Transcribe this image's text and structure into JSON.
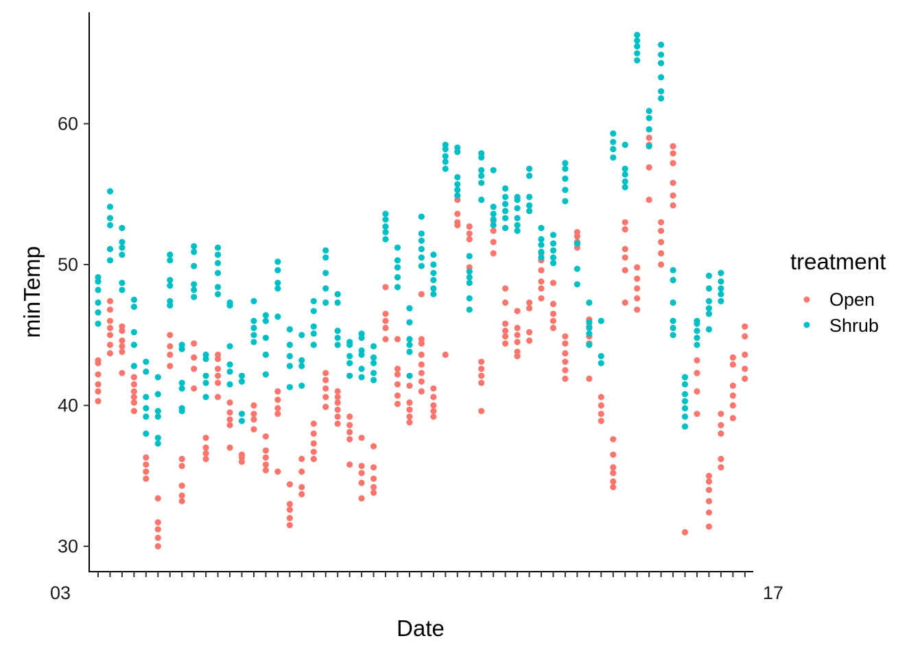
{
  "chart_data": {
    "type": "scatter",
    "title": "",
    "xlabel": "Date",
    "ylabel": "minTemp",
    "ylim": [
      29,
      67
    ],
    "yticks": [
      30,
      40,
      50,
      60
    ],
    "grid": false,
    "legend_position": "right",
    "legend_title": "treatment",
    "x_tick_note": "55 date categories; tick labels overlap and are illegible",
    "x_tick_labels_visible": [
      "03",
      "17"
    ],
    "series": [
      {
        "name": "Open",
        "color": "#F8766D",
        "columns": [
          [
            40.3,
            41.0,
            41.5,
            42.2,
            43.0,
            43.2
          ],
          [
            43.7,
            44.3,
            45.0,
            45.5,
            46.0,
            46.8,
            47.4
          ],
          [
            42.3,
            43.8,
            44.2,
            44.6,
            45.3,
            45.6
          ],
          [
            39.6,
            40.2,
            40.6,
            41.0,
            41.5,
            42.0
          ],
          [
            34.8,
            35.3,
            35.8,
            36.3
          ],
          [
            30.0,
            30.6,
            31.2,
            31.7,
            33.4
          ],
          [
            42.8,
            43.6,
            44.2,
            45.0
          ],
          [
            33.2,
            33.6,
            34.3,
            35.7,
            36.2
          ],
          [
            41.2,
            42.6,
            43.4,
            44.4
          ],
          [
            36.2,
            36.6,
            37.0,
            37.7
          ],
          [
            40.6,
            41.6,
            42.1,
            42.6,
            43.3,
            43.6
          ],
          [
            37.0,
            38.6,
            39.0,
            39.5,
            40.2
          ],
          [
            36.0,
            36.3,
            36.5
          ],
          [
            38.3,
            39.0,
            39.4,
            40.0
          ],
          [
            35.4,
            35.8,
            36.3,
            36.8,
            37.8
          ],
          [
            35.3,
            39.4,
            39.8,
            40.4,
            41.0
          ],
          [
            31.5,
            32.0,
            32.6,
            33.0,
            34.4
          ],
          [
            33.7,
            34.2,
            35.3,
            36.2
          ],
          [
            36.2,
            36.7,
            37.3,
            38.0,
            38.7
          ],
          [
            39.9,
            40.6,
            41.2,
            41.8,
            42.3
          ],
          [
            38.7,
            39.2,
            39.7,
            40.2,
            40.6,
            41.0
          ],
          [
            35.8,
            37.6,
            38.1,
            38.6,
            39.2
          ],
          [
            33.4,
            34.5,
            35.2,
            35.7,
            37.7
          ],
          [
            33.8,
            34.2,
            34.8,
            35.6,
            37.1
          ],
          [
            44.7,
            45.5,
            46.0,
            46.5,
            48.4
          ],
          [
            40.1,
            40.7,
            41.5,
            42.2,
            42.6,
            44.7
          ],
          [
            38.8,
            39.2,
            39.7,
            40.2,
            41.4
          ],
          [
            41.0,
            41.7,
            42.3,
            42.9,
            43.6,
            44.4,
            44.7,
            47.9
          ],
          [
            39.2,
            39.6,
            40.0,
            40.6,
            41.2
          ],
          [
            43.6
          ],
          [
            52.8,
            53.0,
            53.6,
            54.6
          ],
          [
            49.8,
            51.8,
            52.2,
            52.7
          ],
          [
            39.6,
            41.6,
            42.1,
            42.6,
            43.1
          ],
          [
            50.8,
            51.6,
            52.4,
            53.1
          ],
          [
            44.4,
            44.9,
            45.3,
            45.8,
            47.3,
            48.3
          ],
          [
            43.5,
            43.8,
            44.5,
            45.0,
            45.5,
            46.7
          ],
          [
            44.6,
            45.2,
            46.9,
            47.3
          ],
          [
            47.6,
            48.3,
            48.8,
            49.6,
            50.3,
            50.8
          ],
          [
            45.5,
            46.0,
            46.5,
            47.2,
            48.7
          ],
          [
            41.9,
            42.5,
            43.1,
            43.7,
            44.4,
            44.9
          ],
          [
            51.2,
            51.6,
            52.0,
            52.3
          ],
          [
            41.9,
            44.4,
            44.9,
            45.6,
            46.1
          ],
          [
            38.9,
            39.4,
            40.0,
            40.6
          ],
          [
            34.2,
            34.6,
            35.2,
            35.6,
            36.5,
            37.6
          ],
          [
            47.3,
            49.6,
            50.5,
            51.1,
            52.5,
            53.0
          ],
          [
            46.8,
            47.6,
            48.3,
            49.0,
            49.8
          ],
          [
            54.6,
            56.9,
            58.5,
            59.0,
            59.6
          ],
          [
            50.0,
            50.8,
            51.6,
            52.4,
            53.0
          ],
          [
            54.2,
            54.9,
            55.8,
            57.2,
            57.9,
            58.4
          ],
          [
            31.0
          ],
          [
            39.4,
            41.0,
            42.3,
            43.2
          ],
          [
            31.4,
            32.4,
            33.2,
            34.0,
            34.6,
            35.0
          ],
          [
            35.6,
            36.2,
            38.0,
            38.6,
            39.4
          ],
          [
            39.1,
            40.0,
            40.7,
            41.4,
            42.9,
            43.4
          ],
          [
            41.9,
            42.6,
            43.6,
            44.9,
            45.6
          ]
        ]
      },
      {
        "name": "Shrub",
        "color": "#00BFC4",
        "columns": [
          [
            45.8,
            46.6,
            47.3,
            48.2,
            48.8,
            49.1
          ],
          [
            50.3,
            51.1,
            52.8,
            53.3,
            54.1,
            55.2
          ],
          [
            48.2,
            48.7,
            50.7,
            51.2,
            51.6,
            52.6
          ],
          [
            42.8,
            44.3,
            45.2,
            47.0,
            47.5
          ],
          [
            38.0,
            39.2,
            39.8,
            40.6,
            42.4,
            43.1
          ],
          [
            37.3,
            37.7,
            39.2,
            39.6,
            40.8,
            42.0
          ],
          [
            47.1,
            47.4,
            48.5,
            48.9,
            50.3,
            50.7
          ],
          [
            39.6,
            39.8,
            41.2,
            41.6,
            44.0,
            44.3
          ],
          [
            47.7,
            48.2,
            48.6,
            49.9,
            50.9,
            51.3
          ],
          [
            40.6,
            41.6,
            42.1,
            43.3,
            43.6
          ],
          [
            47.9,
            48.4,
            49.4,
            50.1,
            50.7,
            51.2
          ],
          [
            41.5,
            42.4,
            42.9,
            44.2,
            47.1,
            47.3
          ],
          [
            38.9,
            39.4,
            41.7,
            42.1
          ],
          [
            44.5,
            45.0,
            45.5,
            46.0,
            47.4
          ],
          [
            42.2,
            43.6,
            44.8,
            46.0,
            46.4
          ],
          [
            46.3,
            48.3,
            48.7,
            49.6,
            50.2
          ],
          [
            41.3,
            42.8,
            43.5,
            44.3,
            45.4
          ],
          [
            41.4,
            42.8,
            43.2,
            45.0
          ],
          [
            44.3,
            45.1,
            45.6,
            46.7,
            47.4
          ],
          [
            47.3,
            48.3,
            49.4,
            50.5,
            51.0
          ],
          [
            44.3,
            44.8,
            45.3,
            47.3,
            47.9
          ],
          [
            42.1,
            43.0,
            43.5,
            44.3,
            44.5
          ],
          [
            42.0,
            42.6,
            43.6,
            43.9,
            44.8,
            45.1
          ],
          [
            41.8,
            42.3,
            43.0,
            43.4,
            44.2
          ],
          [
            51.8,
            52.3,
            52.7,
            53.2,
            53.6
          ],
          [
            48.4,
            49.1,
            49.8,
            50.3,
            51.2
          ],
          [
            42.1,
            43.8,
            44.3,
            44.7,
            45.9,
            46.9
          ],
          [
            49.9,
            50.5,
            51.1,
            51.7,
            52.2,
            53.4
          ],
          [
            47.9,
            48.3,
            48.9,
            49.4,
            50.0,
            50.7
          ],
          [
            56.8,
            57.3,
            57.7,
            58.2,
            58.5
          ],
          [
            54.9,
            55.3,
            55.7,
            56.2,
            58.0,
            58.3
          ],
          [
            46.8,
            47.6,
            48.7,
            49.1,
            49.5,
            50.6
          ],
          [
            54.6,
            55.8,
            56.3,
            56.7,
            57.6,
            57.9
          ],
          [
            52.8,
            53.2,
            53.6,
            54.1,
            56.7
          ],
          [
            52.6,
            53.3,
            53.8,
            54.3,
            54.8,
            55.4
          ],
          [
            52.4,
            52.8,
            53.3,
            54.0,
            54.6,
            54.8
          ],
          [
            53.8,
            54.2,
            54.8,
            56.3,
            56.8
          ],
          [
            50.5,
            50.9,
            51.4,
            51.8,
            52.6
          ],
          [
            50.1,
            50.5,
            51.0,
            51.5,
            52.1
          ],
          [
            54.5,
            55.3,
            56.1,
            56.8,
            57.2
          ],
          [
            48.6,
            49.7,
            51.5
          ],
          [
            44.3,
            45.1,
            45.5,
            45.9,
            47.3
          ],
          [
            43.0,
            43.5,
            46.0
          ],
          [
            57.6,
            58.2,
            58.7,
            59.3
          ],
          [
            55.5,
            55.9,
            56.4,
            56.8,
            58.5
          ],
          [
            64.5,
            65.0,
            65.5,
            65.9,
            66.3
          ],
          [
            58.4,
            59.6,
            60.4,
            60.9
          ],
          [
            61.8,
            62.3,
            63.3,
            64.3,
            64.9,
            65.6
          ],
          [
            45.0,
            45.5,
            46.0,
            47.3,
            48.9,
            49.6
          ],
          [
            38.5,
            39.2,
            39.8,
            40.3,
            40.8,
            41.5,
            42.0
          ],
          [
            44.3,
            44.8,
            45.3,
            45.8,
            46.0
          ],
          [
            45.4,
            46.5,
            46.9,
            47.4,
            48.3,
            49.2
          ],
          [
            47.4,
            47.9,
            48.3,
            48.8,
            49.4
          ]
        ]
      }
    ]
  }
}
